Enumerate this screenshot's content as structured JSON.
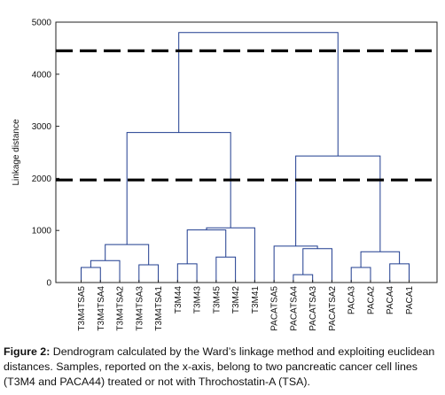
{
  "chart_data": {
    "type": "dendrogram",
    "ylabel": "Linkage distance",
    "ylim": [
      0,
      5000
    ],
    "yticks": [
      0,
      1000,
      2000,
      3000,
      4000,
      5000
    ],
    "leaves": [
      "T3M4TSA5",
      "T3M4TSA4",
      "T3M4TSA2",
      "T3M4TSA3",
      "T3M4TSA1",
      "T3M44",
      "T3M43",
      "T3M45",
      "T3M42",
      "T3M41",
      "PACATSA5",
      "PACATSA4",
      "PACATSA3",
      "PACATSA2",
      "PACA3",
      "PACA2",
      "PACA4",
      "PACA1"
    ],
    "merges": [
      {
        "left": {
          "leaf": 0
        },
        "right": {
          "leaf": 1
        },
        "height": 290
      },
      {
        "left": {
          "node": 0
        },
        "right": {
          "leaf": 2
        },
        "height": 420
      },
      {
        "left": {
          "leaf": 3
        },
        "right": {
          "leaf": 4
        },
        "height": 340
      },
      {
        "left": {
          "node": 1
        },
        "right": {
          "node": 2
        },
        "height": 730
      },
      {
        "left": {
          "leaf": 5
        },
        "right": {
          "leaf": 6
        },
        "height": 360
      },
      {
        "left": {
          "leaf": 7
        },
        "right": {
          "leaf": 8
        },
        "height": 490
      },
      {
        "left": {
          "node": 4
        },
        "right": {
          "node": 5
        },
        "height": 1010
      },
      {
        "left": {
          "node": 6
        },
        "right": {
          "leaf": 9
        },
        "height": 1050
      },
      {
        "left": {
          "node": 3
        },
        "right": {
          "node": 7
        },
        "height": 2880
      },
      {
        "left": {
          "leaf": 11
        },
        "right": {
          "leaf": 12
        },
        "height": 150
      },
      {
        "left": {
          "node": 9
        },
        "right": {
          "leaf": 13
        },
        "height": 650
      },
      {
        "left": {
          "leaf": 10
        },
        "right": {
          "node": 10
        },
        "height": 700
      },
      {
        "left": {
          "leaf": 14
        },
        "right": {
          "leaf": 15
        },
        "height": 290
      },
      {
        "left": {
          "leaf": 16
        },
        "right": {
          "leaf": 17
        },
        "height": 360
      },
      {
        "left": {
          "node": 12
        },
        "right": {
          "node": 13
        },
        "height": 590
      },
      {
        "left": {
          "node": 11
        },
        "right": {
          "node": 14
        },
        "height": 2430
      },
      {
        "left": {
          "node": 8
        },
        "right": {
          "node": 15
        },
        "height": 4800
      }
    ],
    "cut_lines": [
      4450,
      1970
    ],
    "grid": false,
    "line_color": "#1f3c8f"
  },
  "caption": {
    "label": "Figure 2:",
    "text": " Dendrogram calculated by the Ward’s linkage method and exploiting euclidean distances. Samples, reported on the x-axis, belong to two pancreatic cancer cell lines (T3M4 and PACA44) treated or not with Throchostatin-A (TSA)."
  }
}
